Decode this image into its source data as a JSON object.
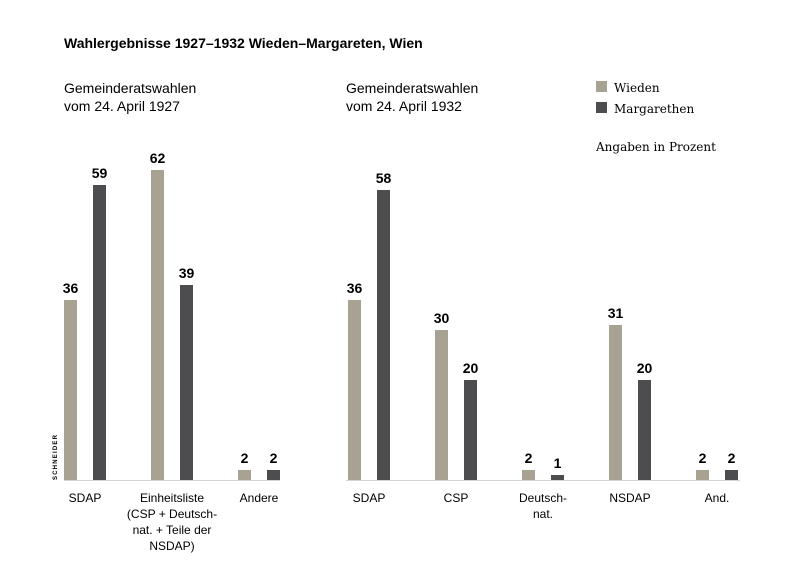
{
  "figure_title": "Wahlergebnisse 1927–1932 Wieden–Margareten, Wien",
  "legend": [
    {
      "label": "Wieden",
      "color": "#a8a293"
    },
    {
      "label": "Margarethen",
      "color": "#4d4d4f"
    }
  ],
  "unit_note": "Angaben in Prozent",
  "credit": "SCHNEIDER",
  "chart_data": [
    {
      "type": "bar",
      "title_lines": [
        "Gemeinderatswahlen",
        "vom 24. April 1927"
      ],
      "categories": [
        "SDAP",
        "Einheitsliste (CSP + Deutschnat. + Teile der NSDAP)",
        "Andere"
      ],
      "category_lines": [
        [
          "SDAP"
        ],
        [
          "Einheitsliste",
          "(CSP + Deutsch-",
          "nat. + Teile der",
          "NSDAP)"
        ],
        [
          "Andere"
        ]
      ],
      "series": [
        {
          "name": "Wieden",
          "values": [
            36,
            62,
            2
          ]
        },
        {
          "name": "Margarethen",
          "values": [
            59,
            39,
            2
          ]
        }
      ],
      "ylim": [
        0,
        62
      ],
      "grid": false,
      "legend_position": "top-right"
    },
    {
      "type": "bar",
      "title_lines": [
        "Gemeinderatswahlen",
        "vom 24. April 1932"
      ],
      "categories": [
        "SDAP",
        "CSP",
        "Deutschnat.",
        "NSDAP",
        "And."
      ],
      "category_lines": [
        [
          "SDAP"
        ],
        [
          "CSP"
        ],
        [
          "Deutsch-",
          "nat."
        ],
        [
          "NSDAP"
        ],
        [
          "And."
        ]
      ],
      "series": [
        {
          "name": "Wieden",
          "values": [
            36,
            30,
            2,
            31,
            2
          ]
        },
        {
          "name": "Margarethen",
          "values": [
            58,
            20,
            1,
            20,
            2
          ]
        }
      ],
      "ylim": [
        0,
        62
      ],
      "grid": false,
      "legend_position": "top-right"
    }
  ]
}
